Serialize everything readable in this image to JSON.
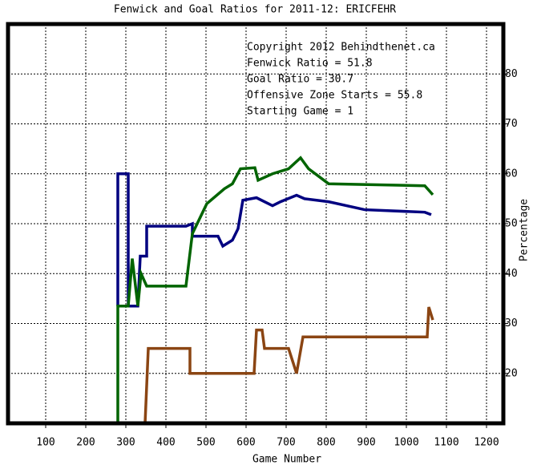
{
  "chart_data": {
    "type": "line",
    "title": "Fenwick and Goal Ratios for 2011-12: ERICFEHR",
    "x_label": "Game Number",
    "y_label": "Percentage",
    "annotations": [
      {
        "text": "Copyright 2012 Behindthenet.ca",
        "color": "#000000"
      },
      {
        "text": "Fenwick Ratio = 51.8",
        "color": "#000080"
      },
      {
        "text": "Goal Ratio = 30.7",
        "color": "#8b4513"
      },
      {
        "text": "Offensive Zone Starts = 55.8",
        "color": "#006400"
      },
      {
        "text": "Starting Game = 1",
        "color": "#000000"
      }
    ],
    "xlim": [
      6,
      1242
    ],
    "xticks": [
      100,
      200,
      300,
      400,
      500,
      600,
      700,
      800,
      900,
      1000,
      1100,
      1200
    ],
    "ylim": [
      10,
      90
    ],
    "yticks": [
      20,
      30,
      40,
      50,
      60,
      70,
      80
    ],
    "grid": true,
    "series": [
      {
        "color": "#000080",
        "x": [
          280,
          280,
          306,
          306,
          330,
          336,
          352,
          352,
          450,
          466,
          466,
          530,
          542,
          566,
          580,
          592,
          626,
          666,
          686,
          726,
          746,
          806,
          896,
          1046,
          1062
        ],
        "values": [
          33.5,
          60,
          60,
          33.5,
          33.5,
          43.5,
          43.5,
          49.5,
          49.5,
          50,
          47.5,
          47.5,
          45.5,
          46.7,
          49,
          54.7,
          55.2,
          53.6,
          54.4,
          55.7,
          55,
          54.4,
          52.8,
          52.3,
          51.8
        ]
      },
      {
        "color": "#8b4513",
        "x": [
          348,
          356,
          460,
          460,
          620,
          626,
          640,
          646,
          706,
          716,
          726,
          742,
          1052,
          1056,
          1066
        ],
        "values": [
          10,
          25,
          25,
          20,
          20,
          28.7,
          28.7,
          25,
          25,
          22.5,
          20,
          27.3,
          27.3,
          33.3,
          30.7
        ]
      },
      {
        "color": "#006400",
        "x": [
          280,
          280,
          306,
          316,
          330,
          338,
          352,
          450,
          466,
          502,
          546,
          566,
          586,
          622,
          630,
          666,
          706,
          736,
          756,
          806,
          1046,
          1066
        ],
        "values": [
          10,
          33.5,
          33.5,
          43,
          33.5,
          40,
          37.5,
          37.5,
          48,
          54,
          57,
          58,
          61,
          61.2,
          58.7,
          60,
          61,
          63.2,
          61,
          58,
          57.6,
          55.8
        ]
      }
    ]
  }
}
